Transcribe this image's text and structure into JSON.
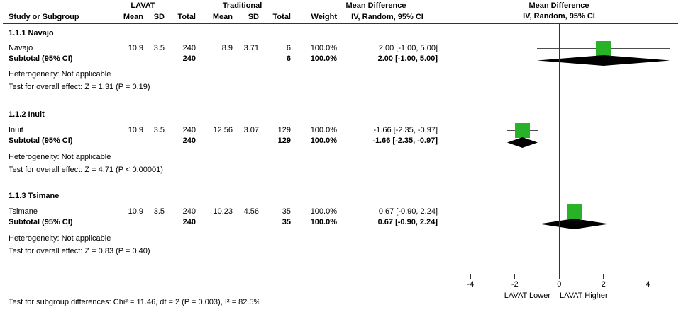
{
  "header": {
    "group1": "LAVAT",
    "group2": "Traditional",
    "effect": "Mean Difference",
    "method": "IV, Random, 95% CI",
    "study_col": "Study or Subgroup",
    "mean": "Mean",
    "sd": "SD",
    "total": "Total",
    "weight": "Weight"
  },
  "groups": [
    {
      "title": "1.1.1 Navajo",
      "study": {
        "name": "Navajo",
        "mean1": "10.9",
        "sd1": "3.5",
        "total1": "240",
        "mean2": "8.9",
        "sd2": "3.71",
        "total2": "6",
        "weight": "100.0%",
        "ci": "2.00 [-1.00, 5.00]"
      },
      "subtotal": {
        "label": "Subtotal (95% CI)",
        "total1": "240",
        "total2": "6",
        "weight": "100.0%",
        "ci": "2.00 [-1.00, 5.00]"
      },
      "heterogeneity": "Heterogeneity: Not applicable",
      "overall_effect": "Test for overall effect: Z = 1.31 (P = 0.19)"
    },
    {
      "title": "1.1.2 Inuit",
      "study": {
        "name": "Inuit",
        "mean1": "10.9",
        "sd1": "3.5",
        "total1": "240",
        "mean2": "12.56",
        "sd2": "3.07",
        "total2": "129",
        "weight": "100.0%",
        "ci": "-1.66 [-2.35, -0.97]"
      },
      "subtotal": {
        "label": "Subtotal (95% CI)",
        "total1": "240",
        "total2": "129",
        "weight": "100.0%",
        "ci": "-1.66 [-2.35, -0.97]"
      },
      "heterogeneity": "Heterogeneity: Not applicable",
      "overall_effect": "Test for overall effect: Z = 4.71 (P < 0.00001)"
    },
    {
      "title": "1.1.3 Tsimane",
      "study": {
        "name": "Tsimane",
        "mean1": "10.9",
        "sd1": "3.5",
        "total1": "240",
        "mean2": "10.23",
        "sd2": "4.56",
        "total2": "35",
        "weight": "100.0%",
        "ci": "0.67 [-0.90, 2.24]"
      },
      "subtotal": {
        "label": "Subtotal (95% CI)",
        "total1": "240",
        "total2": "35",
        "weight": "100.0%",
        "ci": "0.67 [-0.90, 2.24]"
      },
      "heterogeneity": "Heterogeneity: Not applicable",
      "overall_effect": "Test for overall effect: Z = 0.83 (P = 0.40)"
    }
  ],
  "footer": "Test for subgroup differences: Chi² = 11.46, df = 2 (P = 0.003), I² = 82.5%",
  "axis": {
    "ticks": [
      "-4",
      "-2",
      "0",
      "2",
      "4"
    ],
    "tick_values": [
      -4,
      -2,
      0,
      2,
      4
    ],
    "left_label": "LAVAT Lower",
    "right_label": "LAVAT Higher"
  },
  "colors": {
    "marker_green": "#28b228",
    "diamond_black": "#000000",
    "line_gray": "#4d4d4d"
  },
  "chart_data": {
    "type": "forest",
    "effect_measure": "Mean Difference",
    "model": "IV, Random, 95% CI",
    "group_labels": [
      "LAVAT",
      "Traditional"
    ],
    "x_axis": {
      "ticks": [
        -4,
        -2,
        0,
        2,
        4
      ],
      "range": [
        -5.1,
        5.3
      ],
      "label_left": "LAVAT Lower",
      "label_right": "LAVAT Higher"
    },
    "subgroups": [
      {
        "name": "1.1.1 Navajo",
        "studies": [
          {
            "study": "Navajo",
            "lavat_mean": 10.9,
            "lavat_sd": 3.5,
            "lavat_total": 240,
            "traditional_mean": 8.9,
            "traditional_sd": 3.71,
            "traditional_total": 6,
            "weight_pct": 100.0,
            "md": 2.0,
            "ci_low": -1.0,
            "ci_high": 5.0
          }
        ],
        "subtotal": {
          "lavat_total": 240,
          "traditional_total": 6,
          "weight_pct": 100.0,
          "md": 2.0,
          "ci_low": -1.0,
          "ci_high": 5.0
        },
        "heterogeneity": "Not applicable",
        "overall_effect": {
          "Z": 1.31,
          "P": "0.19"
        }
      },
      {
        "name": "1.1.2 Inuit",
        "studies": [
          {
            "study": "Inuit",
            "lavat_mean": 10.9,
            "lavat_sd": 3.5,
            "lavat_total": 240,
            "traditional_mean": 12.56,
            "traditional_sd": 3.07,
            "traditional_total": 129,
            "weight_pct": 100.0,
            "md": -1.66,
            "ci_low": -2.35,
            "ci_high": -0.97
          }
        ],
        "subtotal": {
          "lavat_total": 240,
          "traditional_total": 129,
          "weight_pct": 100.0,
          "md": -1.66,
          "ci_low": -2.35,
          "ci_high": -0.97
        },
        "heterogeneity": "Not applicable",
        "overall_effect": {
          "Z": 4.71,
          "P": "< 0.00001"
        }
      },
      {
        "name": "1.1.3 Tsimane",
        "studies": [
          {
            "study": "Tsimane",
            "lavat_mean": 10.9,
            "lavat_sd": 3.5,
            "lavat_total": 240,
            "traditional_mean": 10.23,
            "traditional_sd": 4.56,
            "traditional_total": 35,
            "weight_pct": 100.0,
            "md": 0.67,
            "ci_low": -0.9,
            "ci_high": 2.24
          }
        ],
        "subtotal": {
          "lavat_total": 240,
          "traditional_total": 35,
          "weight_pct": 100.0,
          "md": 0.67,
          "ci_low": -0.9,
          "ci_high": 2.24
        },
        "heterogeneity": "Not applicable",
        "overall_effect": {
          "Z": 0.83,
          "P": "0.40"
        }
      }
    ],
    "subgroup_differences": {
      "chi2": 11.46,
      "df": 2,
      "P": "0.003",
      "I2_pct": 82.5
    }
  }
}
